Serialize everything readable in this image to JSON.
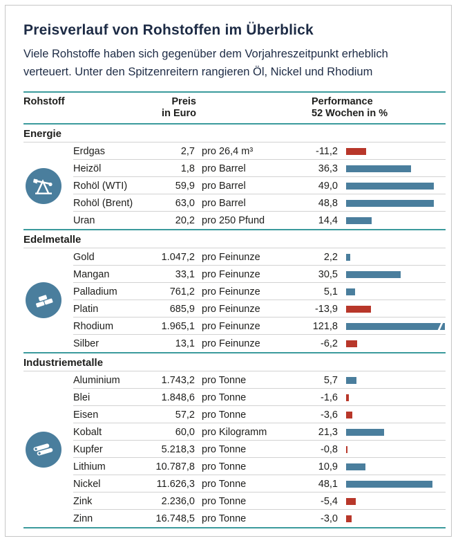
{
  "title": "Preisverlauf von Rohstoffen im Überblick",
  "subtitle": "Viele Rohstoffe haben sich gegenüber dem Vorjahreszeitpunkt erheblich verteuert. Unter den Spitzenreitern rangieren Öl, Nickel und Rhodium",
  "header": {
    "commodity": "Rohstoff",
    "price_line1": "Preis",
    "price_line2": "in Euro",
    "perf_line1": "Performance",
    "perf_line2": "52 Wochen in %"
  },
  "colors": {
    "accent_teal": "#3a9a9c",
    "bar_positive": "#4a7e9d",
    "bar_negative": "#b8372a",
    "icon_circle": "#4a7e9d",
    "title_text": "#1d2b45",
    "body_text": "#1d1d1b",
    "row_line": "#d2d2d2",
    "frame_border": "#c6c6c6"
  },
  "chart_data": {
    "type": "table",
    "title": "Preisverlauf von Rohstoffen im Überblick",
    "bar_axis": "Performance 52 Wochen in %",
    "bar_range_shown": [
      0,
      55
    ],
    "note_truncated_bar": "Rhodium 121,8 ist abgeschnitten dargestellt",
    "sections": [
      {
        "name": "Energie",
        "icon": "oil-pump-icon",
        "rows": [
          {
            "name": "Erdgas",
            "price": "2,7",
            "unit": "pro 26,4 m³",
            "perf": "-11,2",
            "value": -11.2
          },
          {
            "name": "Heizöl",
            "price": "1,8",
            "unit": "pro Barrel",
            "perf": "36,3",
            "value": 36.3
          },
          {
            "name": "Rohöl (WTI)",
            "price": "59,9",
            "unit": "pro Barrel",
            "perf": "49,0",
            "value": 49.0
          },
          {
            "name": "Rohöl (Brent)",
            "price": "63,0",
            "unit": "pro Barrel",
            "perf": "48,8",
            "value": 48.8
          },
          {
            "name": "Uran",
            "price": "20,2",
            "unit": "pro 250 Pfund",
            "perf": "14,4",
            "value": 14.4
          }
        ]
      },
      {
        "name": "Edelmetalle",
        "icon": "ingots-icon",
        "rows": [
          {
            "name": "Gold",
            "price": "1.047,2",
            "unit": "pro Feinunze",
            "perf": "2,2",
            "value": 2.2
          },
          {
            "name": "Mangan",
            "price": "33,1",
            "unit": "pro Feinunze",
            "perf": "30,5",
            "value": 30.5
          },
          {
            "name": "Palladium",
            "price": "761,2",
            "unit": "pro Feinunze",
            "perf": "5,1",
            "value": 5.1
          },
          {
            "name": "Platin",
            "price": "685,9",
            "unit": "pro Feinunze",
            "perf": "-13,9",
            "value": -13.9
          },
          {
            "name": "Rhodium",
            "price": "1.965,1",
            "unit": "pro Feinunze",
            "perf": "121,8",
            "value": 121.8
          },
          {
            "name": "Silber",
            "price": "13,1",
            "unit": "pro Feinunze",
            "perf": "-6,2",
            "value": -6.2
          }
        ]
      },
      {
        "name": "Industriemetalle",
        "icon": "pipes-icon",
        "rows": [
          {
            "name": "Aluminium",
            "price": "1.743,2",
            "unit": "pro Tonne",
            "perf": "5,7",
            "value": 5.7
          },
          {
            "name": "Blei",
            "price": "1.848,6",
            "unit": "pro Tonne",
            "perf": "-1,6",
            "value": -1.6
          },
          {
            "name": "Eisen",
            "price": "57,2",
            "unit": "pro Tonne",
            "perf": "-3,6",
            "value": -3.6
          },
          {
            "name": "Kobalt",
            "price": "60,0",
            "unit": "pro Kilogramm",
            "perf": "21,3",
            "value": 21.3
          },
          {
            "name": "Kupfer",
            "price": "5.218,3",
            "unit": "pro Tonne",
            "perf": "-0,8",
            "value": -0.8
          },
          {
            "name": "Lithium",
            "price": "10.787,8",
            "unit": "pro Tonne",
            "perf": "10,9",
            "value": 10.9
          },
          {
            "name": "Nickel",
            "price": "11.626,3",
            "unit": "pro Tonne",
            "perf": "48,1",
            "value": 48.1
          },
          {
            "name": "Zink",
            "price": "2.236,0",
            "unit": "pro Tonne",
            "perf": "-5,4",
            "value": -5.4
          },
          {
            "name": "Zinn",
            "price": "16.748,5",
            "unit": "pro Tonne",
            "perf": "-3,0",
            "value": -3.0
          }
        ]
      }
    ]
  }
}
